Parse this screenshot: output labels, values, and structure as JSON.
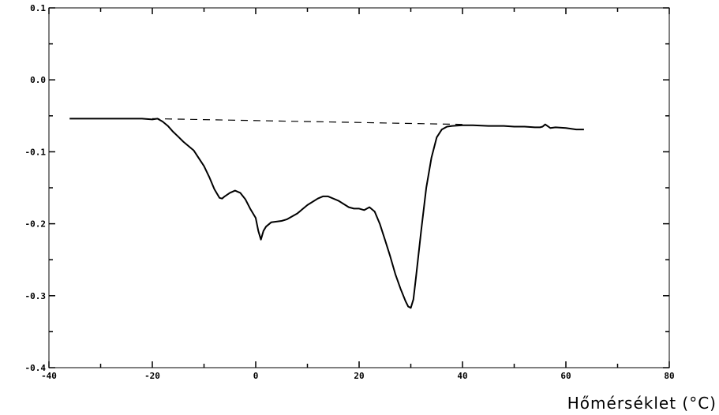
{
  "chart_data": {
    "type": "line",
    "title": "",
    "xlabel": "Hőmérséklet (°C)",
    "ylabel": "",
    "xlim": [
      -40,
      80
    ],
    "ylim": [
      -0.4,
      0.1
    ],
    "grid": false,
    "x_ticks": [
      -40,
      -20,
      0,
      20,
      40,
      60,
      80
    ],
    "x_tick_labels": [
      "-40",
      "-20",
      "0",
      "20",
      "40",
      "60",
      "80"
    ],
    "y_ticks": [
      0.1,
      0.0,
      -0.1,
      -0.2,
      -0.3,
      -0.4
    ],
    "y_tick_labels": [
      "0.1",
      "0.0",
      "-0.1",
      "-0.2",
      "-0.3",
      "-0.4"
    ],
    "series": [
      {
        "style": "solid",
        "color": "#000000",
        "x": [
          -36,
          -30,
          -25,
          -22,
          -20,
          -19,
          -18,
          -17,
          -16,
          -15,
          -14,
          -12,
          -10,
          -9,
          -8,
          -7,
          -6.5,
          -6,
          -5,
          -4,
          -3,
          -2,
          -1,
          0,
          0.5,
          1,
          1.5,
          2,
          3,
          4,
          5,
          6,
          8,
          10,
          12,
          13,
          14,
          16,
          18,
          19,
          20,
          21,
          22,
          23,
          24,
          25,
          26,
          27,
          28,
          29,
          29.5,
          30,
          30.5,
          31,
          32,
          33,
          34,
          35,
          36,
          37,
          38,
          40,
          42,
          45,
          48,
          50,
          52,
          54,
          55,
          55.5,
          56,
          57,
          58,
          60,
          62,
          63.5
        ],
        "y": [
          -0.054,
          -0.054,
          -0.054,
          -0.054,
          -0.055,
          -0.054,
          -0.058,
          -0.064,
          -0.072,
          -0.079,
          -0.086,
          -0.098,
          -0.12,
          -0.135,
          -0.152,
          -0.164,
          -0.165,
          -0.162,
          -0.157,
          -0.154,
          -0.157,
          -0.166,
          -0.18,
          -0.192,
          -0.21,
          -0.222,
          -0.21,
          -0.204,
          -0.198,
          -0.197,
          -0.196,
          -0.194,
          -0.186,
          -0.174,
          -0.165,
          -0.162,
          -0.162,
          -0.168,
          -0.177,
          -0.179,
          -0.179,
          -0.181,
          -0.177,
          -0.183,
          -0.2,
          -0.222,
          -0.245,
          -0.27,
          -0.29,
          -0.308,
          -0.315,
          -0.317,
          -0.305,
          -0.275,
          -0.21,
          -0.15,
          -0.108,
          -0.08,
          -0.069,
          -0.065,
          -0.064,
          -0.063,
          -0.063,
          -0.064,
          -0.064,
          -0.065,
          -0.065,
          -0.066,
          -0.066,
          -0.065,
          -0.062,
          -0.067,
          -0.066,
          -0.067,
          -0.069,
          -0.069
        ]
      },
      {
        "style": "dashed",
        "color": "#000000",
        "x": [
          -20,
          40
        ],
        "y": [
          -0.054,
          -0.062
        ]
      }
    ]
  }
}
